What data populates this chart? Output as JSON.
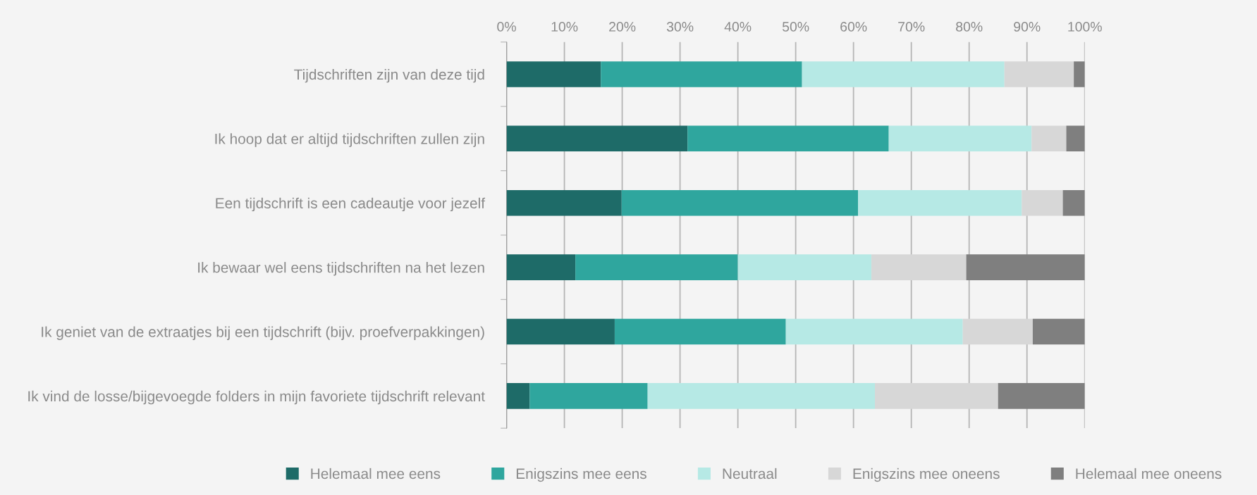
{
  "chart_data": {
    "type": "bar",
    "orientation": "horizontal",
    "stacked": true,
    "categories": [
      "Tijdschriften zijn van deze tijd",
      "Ik hoop dat er altijd tijdschriften zullen zijn",
      "Een tijdschrift is een cadeautje voor jezelf",
      "Ik bewaar wel eens tijdschriften na het lezen",
      "Ik geniet van de extraatjes bij een tijdschrift (bijv. proefverpakkingen)",
      "Ik vind de losse/bijgevoegde folders in mijn favoriete tijdschrift relevant"
    ],
    "series": [
      {
        "name": "Helemaal mee eens",
        "color": "#1e6b68",
        "values": [
          16.3,
          31.3,
          19.9,
          11.9,
          18.7,
          4.0
        ]
      },
      {
        "name": "Enigszins mee eens",
        "color": "#2fa69e",
        "values": [
          34.8,
          34.8,
          40.9,
          28.1,
          29.6,
          20.4
        ]
      },
      {
        "name": "Neutraal",
        "color": "#b6e9e5",
        "values": [
          35.0,
          24.7,
          28.3,
          23.1,
          30.6,
          39.3
        ]
      },
      {
        "name": "Enigszins mee oneens",
        "color": "#d7d7d7",
        "values": [
          12.0,
          6.0,
          7.1,
          16.4,
          12.1,
          21.3
        ]
      },
      {
        "name": "Helemaal mee oneens",
        "color": "#7f7f7f",
        "values": [
          1.9,
          3.2,
          3.8,
          20.5,
          9.0,
          15.0
        ]
      }
    ],
    "xlim": [
      0,
      100
    ],
    "xticks": [
      {
        "value": 0,
        "label": "0%"
      },
      {
        "value": 10,
        "label": "10%"
      },
      {
        "value": 20,
        "label": "20%"
      },
      {
        "value": 30,
        "label": "30%"
      },
      {
        "value": 40,
        "label": "40%"
      },
      {
        "value": 50,
        "label": "50%"
      },
      {
        "value": 60,
        "label": "60%"
      },
      {
        "value": 70,
        "label": "70%"
      },
      {
        "value": 80,
        "label": "80%"
      },
      {
        "value": 90,
        "label": "90%"
      },
      {
        "value": 100,
        "label": "100%"
      }
    ],
    "grid": "x",
    "legend": "bottom"
  }
}
